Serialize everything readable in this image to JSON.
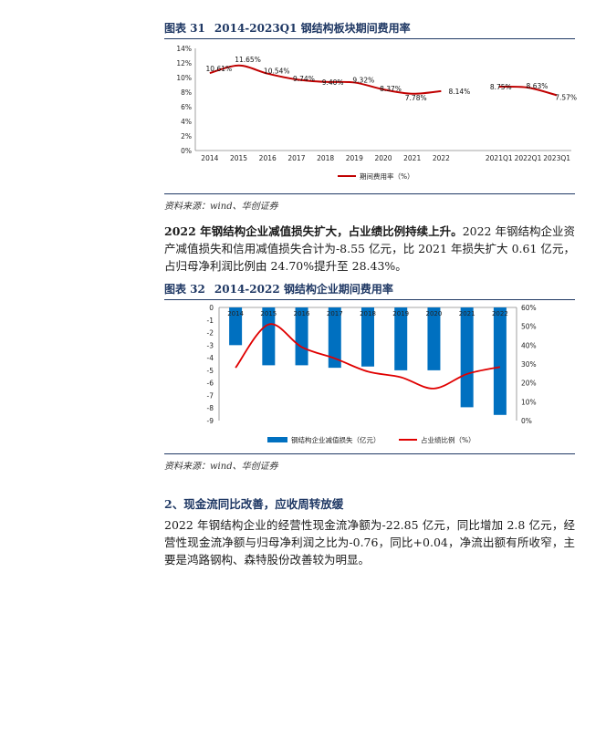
{
  "fig31": {
    "number": "图表 31",
    "title": "2014-2023Q1 钢结构板块期间费用率",
    "source": "资料来源：wind、华创证券"
  },
  "para1": "2022 年钢结构企业减值损失扩大，占业绩比例持续上升。2022 年钢结构企业资产减值损失和信用减值损失合计为-8.55 亿元，比 2021 年损失扩大 0.61 亿元，占归母净利润比例由 24.70%提升至 28.43%。",
  "fig32": {
    "number": "图表 32",
    "title": "2014-2022 钢结构企业期间费用率",
    "source": "资料来源：wind、华创证券"
  },
  "section2": "2、现金流同比改善，应收周转放缓",
  "para2": "2022 年钢结构企业的经营性现金流净额为-22.85 亿元，同比增加 2.8 亿元，经营性现金流净额与归母净利润之比为-0.76，同比+0.04，净流出额有所收窄，主要是鸿路钢构、森特股份改善较为明显。",
  "chart_data": [
    {
      "type": "line",
      "categories": [
        "2014",
        "2015",
        "2016",
        "2017",
        "2018",
        "2019",
        "2020",
        "2021",
        "2022",
        "",
        "2021Q1",
        "2022Q1",
        "2023Q1"
      ],
      "series": [
        {
          "name": "期间费用率（%）",
          "values": [
            10.61,
            11.65,
            10.54,
            9.74,
            9.4,
            9.32,
            8.37,
            7.78,
            8.14,
            null,
            8.75,
            8.63,
            7.57
          ]
        }
      ],
      "data_labels": [
        "10.61%",
        "11.65%",
        "10.54%",
        "9.74%",
        "9.40%",
        "9.32%",
        "8.37%",
        "7.78%",
        "8.14%",
        "",
        "8.75%",
        "8.63%",
        "7.57%"
      ],
      "yticks": [
        "0%",
        "2%",
        "4%",
        "6%",
        "8%",
        "10%",
        "12%",
        "14%"
      ],
      "ylim": [
        0,
        14
      ],
      "legend_position": "bottom",
      "color": "#c00000"
    },
    {
      "type": "bar",
      "categories": [
        "2014",
        "2015",
        "2016",
        "2017",
        "2018",
        "2019",
        "2020",
        "2021",
        "2022"
      ],
      "series": [
        {
          "name": "钢结构企业减值损失（亿元）",
          "axis": "left",
          "values": [
            -3.0,
            -4.6,
            -4.6,
            -4.8,
            -4.7,
            -5.0,
            -5.0,
            -7.94,
            -8.55
          ],
          "color": "#0070c0"
        },
        {
          "name": "占业绩比例（%）",
          "axis": "right",
          "type": "line",
          "values": [
            28,
            51,
            39,
            33,
            26,
            23,
            17,
            24.7,
            28.43
          ],
          "color": "#e00000"
        }
      ],
      "yticks_left": [
        "0",
        "-1",
        "-2",
        "-3",
        "-4",
        "-5",
        "-6",
        "-7",
        "-8",
        "-9"
      ],
      "ylim_left": [
        -9,
        0
      ],
      "yticks_right": [
        "0%",
        "10%",
        "20%",
        "30%",
        "40%",
        "50%",
        "60%"
      ],
      "ylim_right": [
        0,
        60
      ],
      "legend_position": "bottom"
    }
  ]
}
